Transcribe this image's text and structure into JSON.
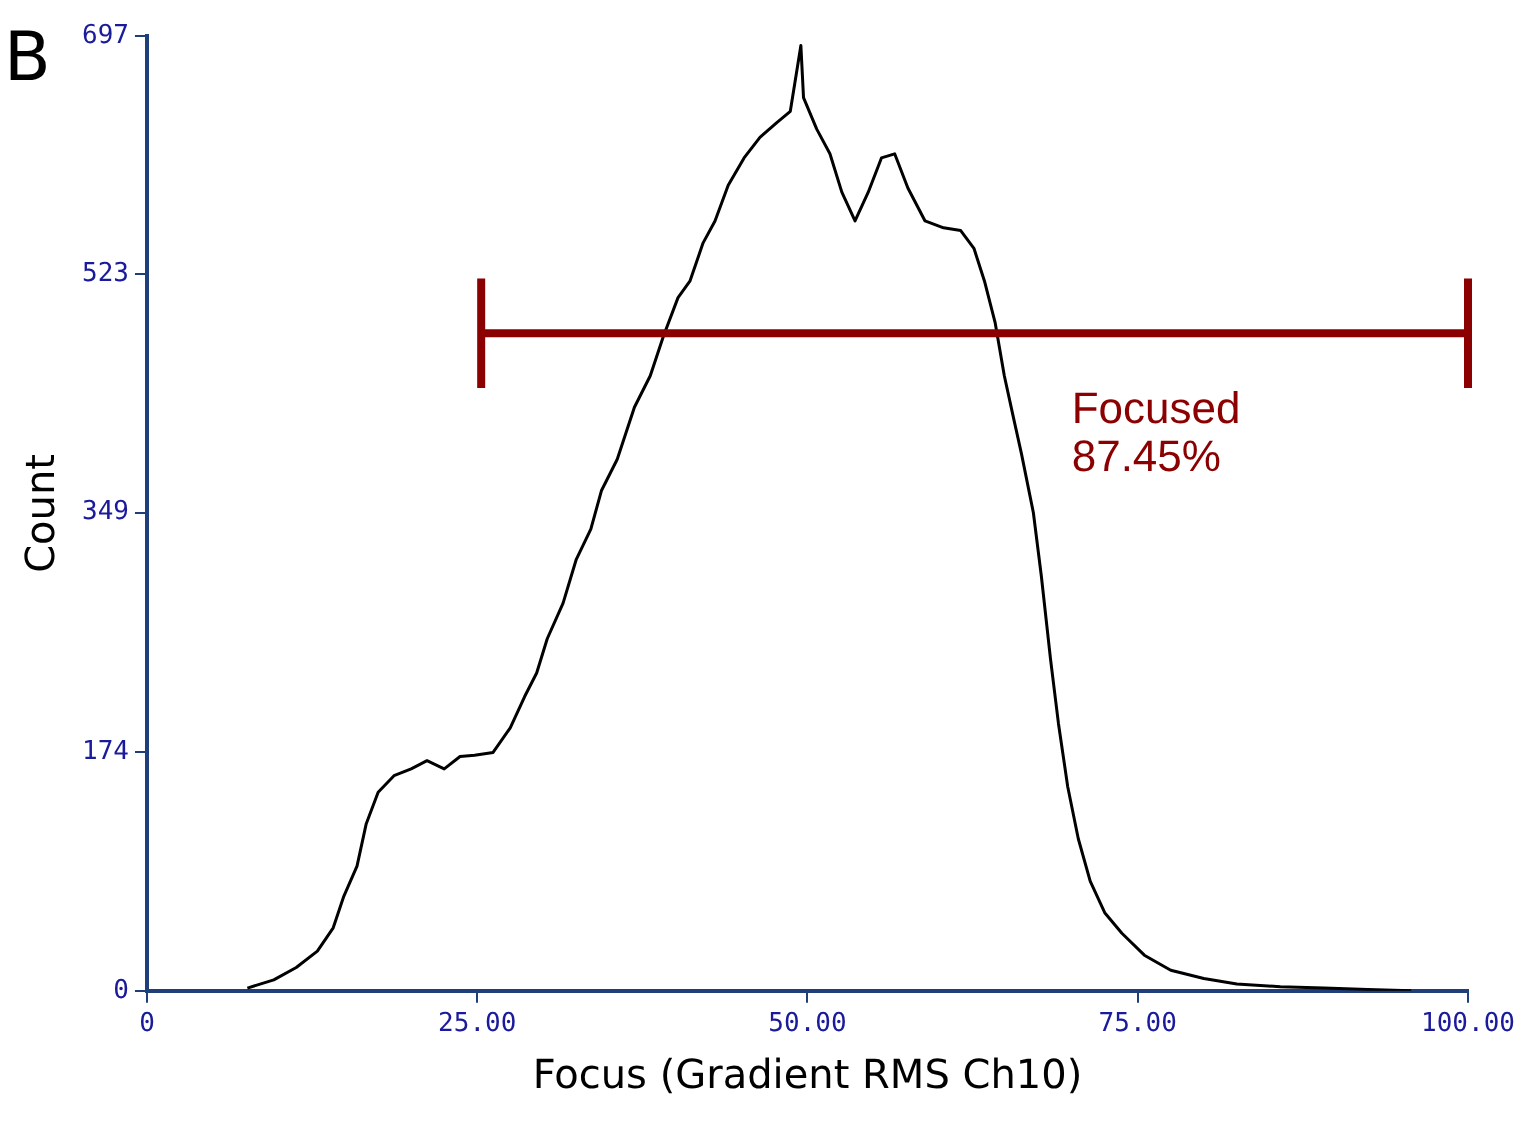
{
  "chart_data": {
    "type": "line",
    "xlabel": "Focus (Gradient RMS Ch10)",
    "ylabel": "Count",
    "annotations": [
      "B",
      "Focused\n87.45%"
    ],
    "xlim": [
      0,
      100
    ],
    "xticks": [
      0,
      {
        "value": 25,
        "label": "25.00"
      },
      {
        "value": 50,
        "label": "50.00"
      },
      {
        "value": 75,
        "label": "75.00"
      },
      {
        "value": 100,
        "label": "100.00"
      }
    ],
    "ylim": [
      0,
      697
    ],
    "yticks": [
      0,
      174,
      349,
      523,
      697
    ],
    "grid": false,
    "legend": false,
    "marker": "none",
    "series": [
      {
        "color": "#8b0000",
        "x": [
          25.3,
          100
        ],
        "values": [
          480,
          480
        ],
        "errors": [
          40,
          40
        ]
      },
      {
        "color": "#000000",
        "x": [
          7.6,
          9.6,
          11.3,
          12.9,
          14.1,
          14.9,
          15.9,
          16.6,
          17.5,
          18.7,
          20.0,
          21.2,
          22.5,
          23.7,
          24.8,
          26.2,
          27.5,
          28.6,
          29.5,
          30.3,
          31.5,
          32.5,
          33.6,
          34.4,
          35.6,
          36.9,
          38.1,
          39.1,
          40.2,
          41.1,
          42.1,
          43.0,
          44.0,
          45.2,
          46.4,
          47.7,
          48.7,
          49.5,
          49.7,
          50.7,
          51.7,
          52.6,
          53.6,
          54.6,
          55.6,
          56.6,
          57.6,
          58.9,
          60.3,
          61.6,
          62.6,
          63.4,
          64.2,
          64.9,
          65.6,
          66.2,
          67.1,
          67.7,
          68.4,
          69.0,
          69.7,
          70.5,
          71.4,
          72.5,
          73.8,
          75.5,
          77.5,
          80.0,
          82.5,
          85.8,
          89.1,
          92.4,
          95.7
        ],
        "values": [
          2,
          8,
          17,
          29,
          46,
          69,
          91,
          122,
          145,
          157,
          162,
          168,
          162,
          171,
          172,
          174,
          192,
          215,
          232,
          257,
          283,
          315,
          337,
          365,
          388,
          426,
          449,
          478,
          506,
          518,
          546,
          562,
          588,
          608,
          623,
          634,
          642,
          690,
          652,
          629,
          611,
          583,
          562,
          583,
          608,
          611,
          586,
          562,
          557,
          555,
          542,
          518,
          488,
          449,
          418,
          392,
          349,
          303,
          242,
          195,
          149,
          111,
          80,
          57,
          42,
          26,
          15,
          9,
          5,
          3,
          2,
          1,
          0
        ]
      }
    ]
  }
}
